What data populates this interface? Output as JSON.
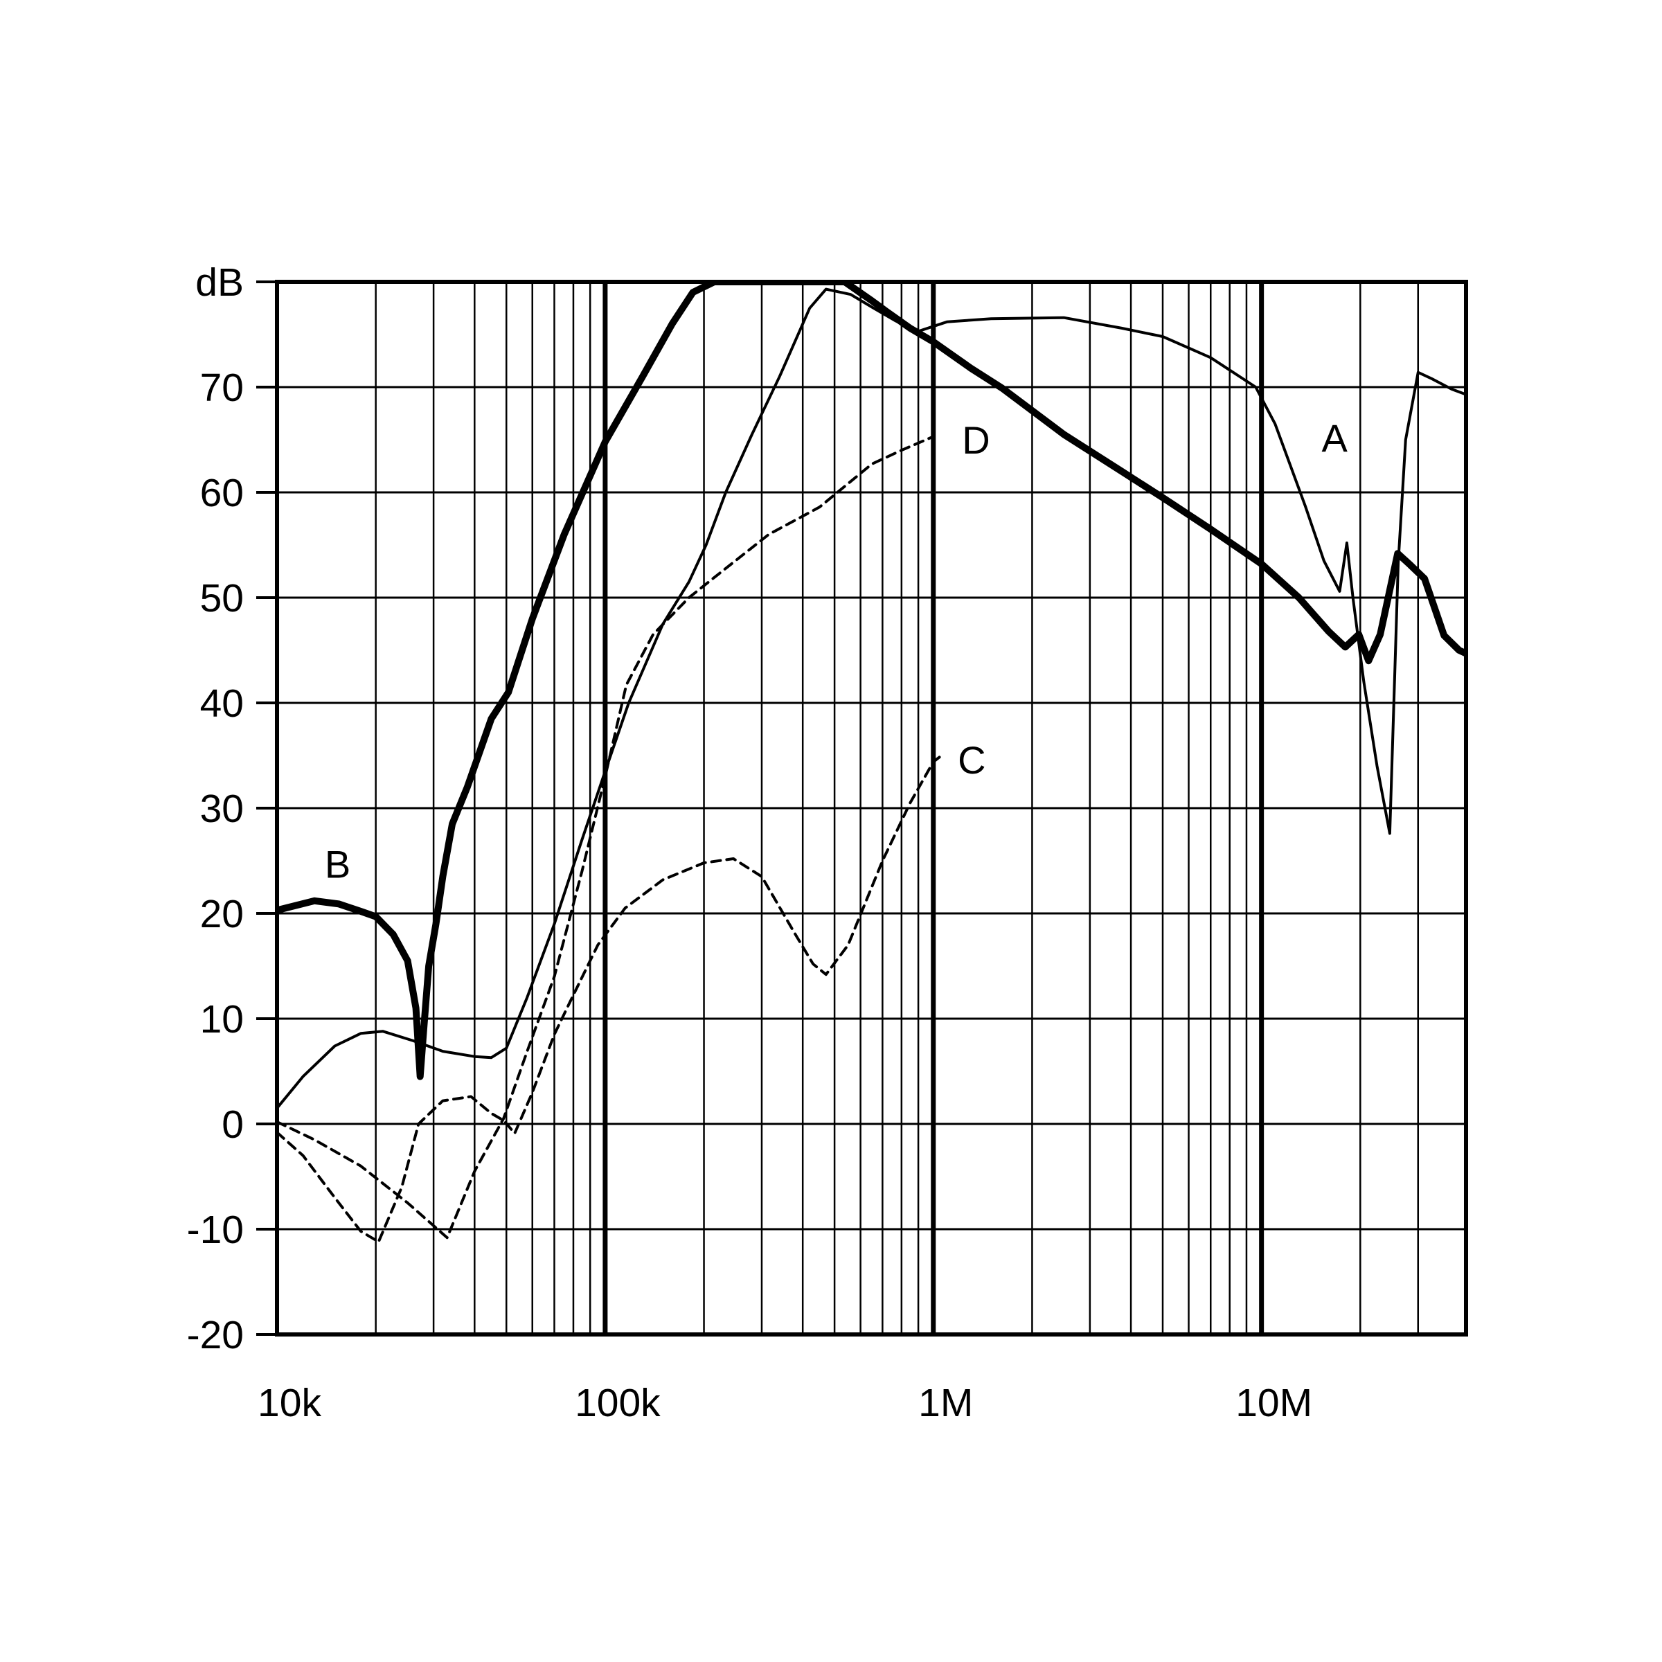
{
  "colors": {
    "background": "#ffffff",
    "ink": "#000000"
  },
  "chart_data": {
    "type": "line",
    "title": "",
    "xlabel": "",
    "ylabel": "dB",
    "x_axis": {
      "scale": "log",
      "range_hz": [
        10000,
        42000000
      ],
      "tick_labels": [
        {
          "f": 10000,
          "label": "10k"
        },
        {
          "f": 100000,
          "label": "100k"
        },
        {
          "f": 1000000,
          "label": "1M"
        },
        {
          "f": 10000000,
          "label": "10M"
        }
      ],
      "minor_gridlines": "log multiples 2-9 per decade",
      "major_gridlines_hz": [
        100000,
        1000000,
        10000000
      ]
    },
    "y_axis": {
      "unit": "dB",
      "range": [
        -20,
        80
      ],
      "tick_step": 10,
      "top_tick_label": "dB",
      "tick_labels": [
        "dB",
        "70",
        "60",
        "50",
        "40",
        "30",
        "20",
        "10",
        "0",
        "-10",
        "-20"
      ],
      "grid": true
    },
    "legend_position": "inline-curve-labels",
    "series": [
      {
        "name": "A",
        "style": "solid",
        "stroke_width": 4,
        "label": "A",
        "label_pos": {
          "f": 16700000,
          "db": 65.2
        },
        "points": [
          [
            10000,
            1.5
          ],
          [
            12000,
            4.5
          ],
          [
            15000,
            7.4
          ],
          [
            18000,
            8.6
          ],
          [
            21000,
            8.8
          ],
          [
            26000,
            7.9
          ],
          [
            32000,
            6.9
          ],
          [
            40000,
            6.4
          ],
          [
            45000,
            6.3
          ],
          [
            50000,
            7.2
          ],
          [
            57800,
            12
          ],
          [
            70000,
            19
          ],
          [
            85000,
            27
          ],
          [
            100000,
            33.5
          ],
          [
            118000,
            40
          ],
          [
            150000,
            47.5
          ],
          [
            180000,
            51.5
          ],
          [
            203000,
            55
          ],
          [
            233000,
            60
          ],
          [
            280000,
            65.5
          ],
          [
            340000,
            71
          ],
          [
            420000,
            77.5
          ],
          [
            471000,
            79.3
          ],
          [
            560000,
            78.8
          ],
          [
            650000,
            77.6
          ],
          [
            766000,
            76.3
          ],
          [
            900000,
            75.3
          ],
          [
            1100000,
            76.2
          ],
          [
            1500000,
            76.5
          ],
          [
            2500000,
            76.6
          ],
          [
            3750000,
            75.6
          ],
          [
            5000000,
            74.8
          ],
          [
            7000000,
            72.8
          ],
          [
            9600000,
            70
          ],
          [
            11000000,
            66.5
          ],
          [
            13600000,
            58.7
          ],
          [
            15500000,
            53.5
          ],
          [
            17300000,
            50.6
          ],
          [
            18200000,
            55.2
          ],
          [
            19000000,
            50
          ],
          [
            20500000,
            42
          ],
          [
            22500000,
            34
          ],
          [
            24600000,
            27.6
          ],
          [
            26100000,
            53.3
          ],
          [
            27500000,
            65
          ],
          [
            30000000,
            71.4
          ],
          [
            33000000,
            70.8
          ],
          [
            38000000,
            69.8
          ],
          [
            42000000,
            69.3
          ]
        ]
      },
      {
        "name": "B",
        "style": "solid",
        "stroke_width": 10,
        "label": "B",
        "label_pos": {
          "f": 15300,
          "db": 24.7
        },
        "points": [
          [
            10000,
            20.3
          ],
          [
            13000,
            21.2
          ],
          [
            15400,
            20.9
          ],
          [
            18000,
            20.2
          ],
          [
            20000,
            19.7
          ],
          [
            22600,
            18
          ],
          [
            25000,
            15.5
          ],
          [
            26500,
            11
          ],
          [
            27300,
            4.5
          ],
          [
            28000,
            9
          ],
          [
            29000,
            15
          ],
          [
            30500,
            19
          ],
          [
            32000,
            23.5
          ],
          [
            34200,
            28.5
          ],
          [
            38000,
            32
          ],
          [
            45000,
            38.5
          ],
          [
            50700,
            41
          ],
          [
            60000,
            48
          ],
          [
            75000,
            56
          ],
          [
            100000,
            64.8
          ],
          [
            130000,
            71
          ],
          [
            160000,
            76
          ],
          [
            185000,
            79
          ],
          [
            215000,
            80
          ],
          [
            537000,
            80
          ],
          [
            650000,
            78.2
          ],
          [
            719000,
            77.2
          ],
          [
            850000,
            75.6
          ],
          [
            1000000,
            74.3
          ],
          [
            1300000,
            71.8
          ],
          [
            1620000,
            69.9
          ],
          [
            2500000,
            65.5
          ],
          [
            3750000,
            62
          ],
          [
            5000000,
            59.5
          ],
          [
            7000000,
            56.5
          ],
          [
            10000000,
            53.2
          ],
          [
            13000000,
            50
          ],
          [
            16000000,
            46.8
          ],
          [
            18000000,
            45.3
          ],
          [
            19800000,
            46.5
          ],
          [
            21200000,
            44
          ],
          [
            23000000,
            46.5
          ],
          [
            26000000,
            54.2
          ],
          [
            28200000,
            53.2
          ],
          [
            31400000,
            51.8
          ],
          [
            36000000,
            46.4
          ],
          [
            40000000,
            45
          ],
          [
            42000000,
            44.7
          ]
        ]
      },
      {
        "name": "C",
        "style": "dashed",
        "stroke_width": 4,
        "label": "C",
        "label_pos": {
          "f": 1310000,
          "db": 34.6
        },
        "points": [
          [
            10000,
            -0.8
          ],
          [
            12000,
            -3
          ],
          [
            15000,
            -7
          ],
          [
            18000,
            -10.2
          ],
          [
            20400,
            -11.2
          ],
          [
            24000,
            -6
          ],
          [
            27000,
            0
          ],
          [
            32000,
            2.2
          ],
          [
            39000,
            2.6
          ],
          [
            45000,
            1
          ],
          [
            49200,
            0.3
          ],
          [
            53000,
            -0.9
          ],
          [
            60000,
            3
          ],
          [
            70000,
            8.5
          ],
          [
            79000,
            11.9
          ],
          [
            95000,
            17
          ],
          [
            115000,
            20.5
          ],
          [
            150000,
            23.2
          ],
          [
            200000,
            24.8
          ],
          [
            246000,
            25.2
          ],
          [
            300000,
            23.5
          ],
          [
            380000,
            18
          ],
          [
            430000,
            15.2
          ],
          [
            471000,
            14.2
          ],
          [
            550000,
            17
          ],
          [
            700000,
            25
          ],
          [
            850000,
            30.5
          ],
          [
            1000000,
            34.4
          ],
          [
            1080000,
            35.2
          ]
        ]
      },
      {
        "name": "D",
        "style": "dashed",
        "stroke_width": 4,
        "label": "D",
        "label_pos": {
          "f": 1350000,
          "db": 65
        },
        "points": [
          [
            10000,
            0.2
          ],
          [
            13000,
            -1.5
          ],
          [
            18000,
            -4
          ],
          [
            25000,
            -7.5
          ],
          [
            33000,
            -10.8
          ],
          [
            40000,
            -4.5
          ],
          [
            49000,
            0.5
          ],
          [
            58000,
            7
          ],
          [
            70000,
            14
          ],
          [
            85000,
            24
          ],
          [
            100000,
            33
          ],
          [
            116000,
            41.7
          ],
          [
            140000,
            46.5
          ],
          [
            180000,
            50
          ],
          [
            225000,
            52.4
          ],
          [
            315000,
            56
          ],
          [
            450000,
            58.6
          ],
          [
            650000,
            62.7
          ],
          [
            800000,
            64
          ],
          [
            1000000,
            65.3
          ]
        ]
      }
    ]
  }
}
